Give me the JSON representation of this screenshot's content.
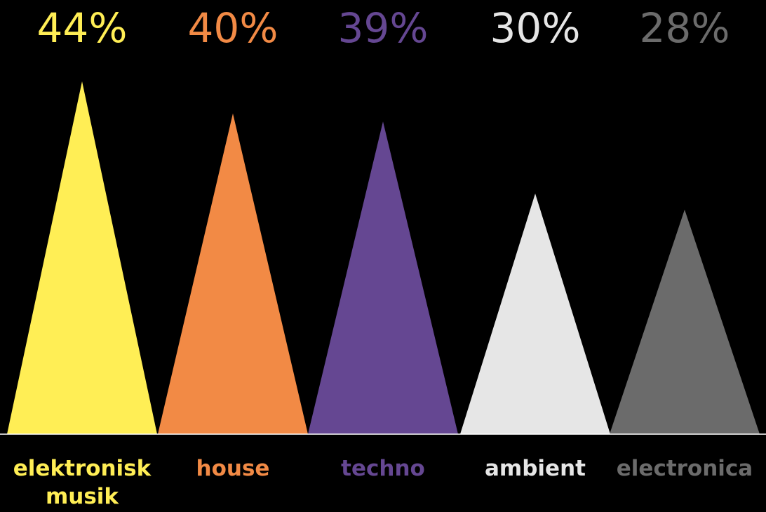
{
  "chart_data": {
    "type": "bar",
    "shape": "triangle",
    "categories": [
      [
        "elektronisk",
        "musik"
      ],
      [
        "house"
      ],
      [
        "techno"
      ],
      [
        "ambient"
      ],
      [
        "electronica"
      ]
    ],
    "values": [
      44,
      40,
      39,
      30,
      28
    ],
    "value_labels": [
      "44%",
      "40%",
      "39%",
      "30%",
      "28%"
    ],
    "colors": [
      "#FFEE55",
      "#F28A45",
      "#654792",
      "#E6E6E6",
      "#6B6B6B"
    ],
    "ylim": [
      0,
      44
    ],
    "grid": false,
    "legend": "none",
    "title": "",
    "xlabel": "",
    "ylabel": ""
  },
  "background": "#000000",
  "baseline_color": "#FFFFFF"
}
